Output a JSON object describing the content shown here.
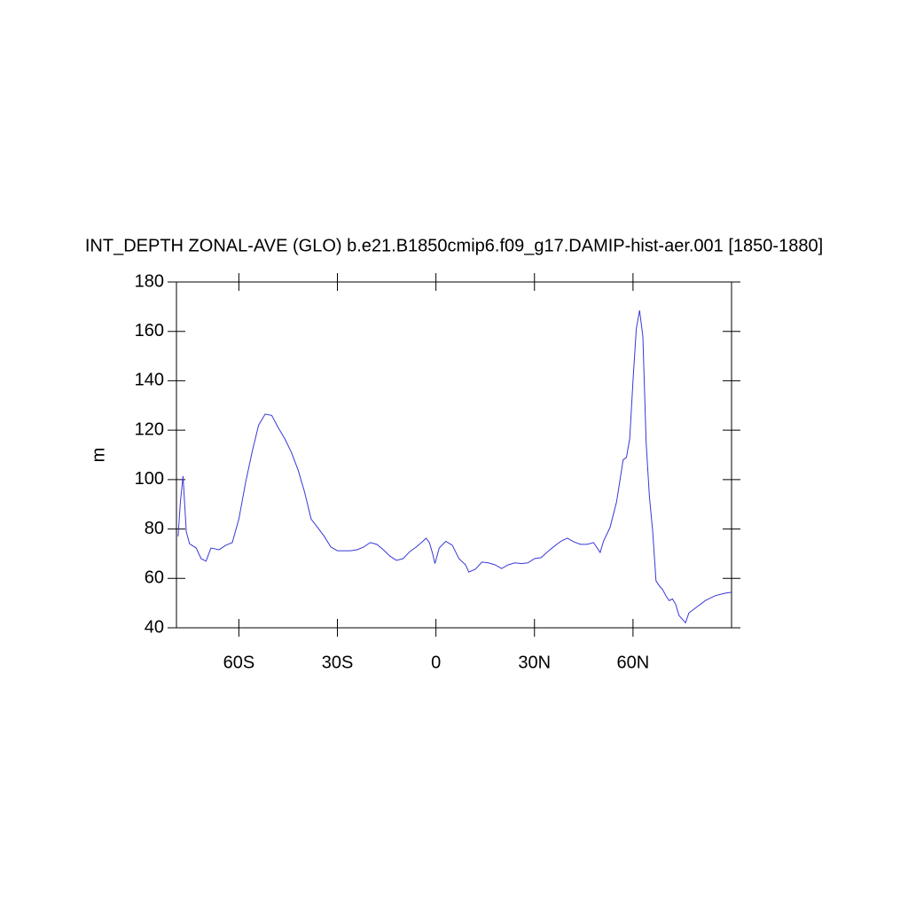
{
  "chart_data": {
    "type": "line",
    "title": "INT_DEPTH ZONAL-AVE (GLO) b.e21.B1850cmip6.f09_g17.DAMIP-hist-aer.001 [1850-1880]",
    "y_label": "m",
    "x": [
      -78.5,
      -77.8,
      -77,
      -76,
      -75,
      -73,
      -71.5,
      -70,
      -68.5,
      -66,
      -64,
      -62,
      -60,
      -58,
      -56,
      -54,
      -52,
      -50,
      -48,
      -46,
      -44,
      -42,
      -40,
      -38,
      -36,
      -34,
      -32,
      -30,
      -28,
      -26,
      -24,
      -22,
      -20,
      -18,
      -16,
      -14,
      -12,
      -10,
      -8,
      -6,
      -4,
      -3,
      -2,
      -1,
      -0.3,
      1,
      3,
      5,
      7,
      9,
      10,
      12,
      14,
      16,
      18,
      20,
      22,
      24,
      26,
      28,
      30,
      32,
      34,
      36,
      38,
      40,
      42,
      44,
      46,
      48,
      50,
      51,
      53,
      55,
      57,
      58,
      59,
      60,
      61,
      62,
      63,
      64,
      65,
      66,
      67,
      68,
      69,
      70,
      71,
      72,
      73,
      74,
      76,
      77,
      79,
      82,
      85,
      88,
      90
    ],
    "series": [
      {
        "name": "INT_DEPTH",
        "color": "#3838d8",
        "values": [
          77,
          91,
          101.4,
          78.8,
          74,
          72.3,
          68,
          67,
          72.3,
          71.6,
          73.4,
          74.5,
          84,
          98.5,
          111,
          122,
          126.5,
          126,
          121,
          116.5,
          111,
          104,
          95,
          84,
          80.6,
          77,
          72.7,
          71.2,
          71.2,
          71.2,
          71.6,
          72.7,
          74.5,
          73.8,
          71.6,
          69,
          67.3,
          68,
          70.8,
          72.7,
          75,
          76.3,
          74.5,
          70,
          66,
          72.3,
          75,
          73.4,
          68,
          65.5,
          62.6,
          63.7,
          66.6,
          66.3,
          65.5,
          64,
          65.5,
          66.3,
          66,
          66.3,
          68,
          68.4,
          70.8,
          73,
          75,
          76.3,
          74.8,
          73.8,
          73.8,
          74.5,
          70.5,
          75,
          80.6,
          91,
          108,
          109,
          116.5,
          140,
          161,
          168.5,
          158,
          115,
          93,
          79,
          59,
          57,
          55.5,
          53,
          51,
          51.7,
          49.5,
          45,
          42,
          46,
          48,
          51,
          53,
          54,
          54.4
        ]
      }
    ],
    "xlim": [
      -79,
      90
    ],
    "xticks": [
      {
        "value": -60,
        "label": "60S"
      },
      {
        "value": -30,
        "label": "30S"
      },
      0,
      {
        "value": 30,
        "label": "30N"
      },
      {
        "value": 60,
        "label": "60N"
      }
    ],
    "ylim": [
      40,
      180
    ],
    "yticks": [
      40,
      60,
      80,
      100,
      120,
      140,
      160,
      180
    ],
    "grid": false
  }
}
